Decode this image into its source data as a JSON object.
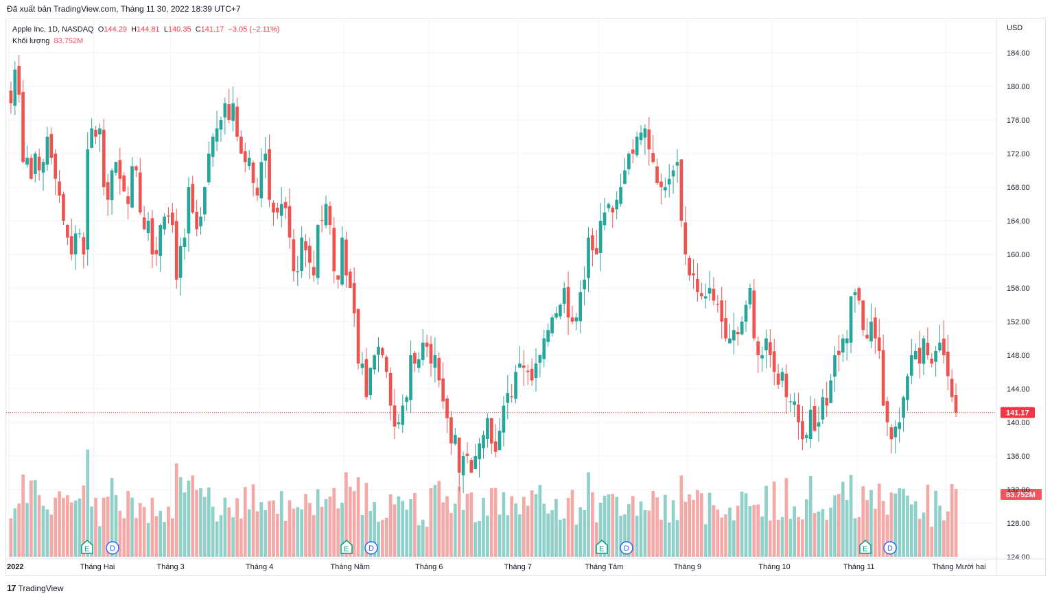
{
  "header": {
    "published": "Đã xuất bản TradingView.com, Tháng 11 30, 2022 18:39 UTC+7",
    "symbol": "Apple Inc, 1D, NASDAQ",
    "o_label": "O",
    "o_value": "144.29",
    "h_label": "H",
    "h_value": "144.81",
    "l_label": "L",
    "l_value": "140.35",
    "c_label": "C",
    "c_value": "141.17",
    "change": "−3.05 (−2.11%)",
    "volume_label": "Khối lượng",
    "volume_value": "83.752M"
  },
  "footer": {
    "brand": "TradingView",
    "logo": "17"
  },
  "colors": {
    "up": "#26a69a",
    "down": "#ef5350",
    "vol_up": "#8fd1c9",
    "vol_down": "#f4a9a7",
    "last_price_bg": "#f23645",
    "volume_badge_bg": "#f7525f",
    "grid": "#f0f3fa"
  },
  "chart_data": {
    "type": "candlestick",
    "price_axis_label": "USD",
    "y_ticks": [
      "184.00",
      "180.00",
      "176.00",
      "172.00",
      "168.00",
      "164.00",
      "160.00",
      "156.00",
      "152.00",
      "148.00",
      "144.00",
      "140.00",
      "136.00",
      "132.00",
      "128.00",
      "124.00"
    ],
    "ylim": [
      124,
      188
    ],
    "x_labels": [
      "2022",
      "Tháng Hai",
      "Tháng 3",
      "Tháng 4",
      "Tháng Năm",
      "Tháng 6",
      "Tháng 7",
      "Tháng Tám",
      "Tháng 9",
      "Tháng 10",
      "Tháng 11",
      "Tháng Mười hai"
    ],
    "last_price": "141.17",
    "last_volume": "83.752M",
    "events": [
      {
        "type": "E",
        "month_index": 1
      },
      {
        "type": "D",
        "month_index": 1
      },
      {
        "type": "E",
        "month_index": 4
      },
      {
        "type": "D",
        "month_index": 4
      },
      {
        "type": "E",
        "month_index": 7
      },
      {
        "type": "D",
        "month_index": 7
      },
      {
        "type": "E",
        "month_index": 10
      },
      {
        "type": "D",
        "month_index": 10
      }
    ],
    "close_series": [
      178,
      182,
      179,
      171,
      171.5,
      169,
      172,
      170,
      171,
      174,
      171.5,
      169,
      167,
      164,
      162,
      160,
      162.5,
      162.5,
      160,
      172.5,
      175,
      174,
      175,
      168,
      166.5,
      170,
      171,
      169,
      167.5,
      166,
      170.5,
      170,
      165,
      163,
      164,
      160,
      160,
      163.5,
      164.5,
      164.5,
      163.5,
      157,
      161,
      162,
      168,
      165,
      163,
      164.5,
      168,
      172,
      174,
      175,
      176,
      178,
      176,
      178,
      174,
      172,
      171,
      171.5,
      168.5,
      167,
      171,
      172,
      166.5,
      165,
      165,
      166,
      165.5,
      162,
      158,
      158,
      162,
      160.5,
      159,
      157.5,
      163.5,
      164,
      166,
      163.5,
      158,
      157,
      162,
      157.5,
      156,
      153,
      147,
      147,
      143,
      146.5,
      148,
      149,
      148,
      146,
      142,
      139.5,
      140,
      142,
      143,
      148,
      147,
      147.5,
      149.5,
      149,
      147,
      148,
      145,
      142.5,
      140.5,
      137.5,
      138.5,
      134,
      136,
      136,
      134,
      136,
      137.5,
      138.5,
      140.5,
      137.5,
      136.5,
      139,
      142,
      143.5,
      143,
      146,
      147,
      146.5,
      146,
      145,
      147,
      148,
      150,
      151,
      152.5,
      153,
      154,
      156,
      152.5,
      152,
      152.5,
      155.5,
      157,
      162,
      160.5,
      160,
      164,
      165,
      166,
      165,
      166.5,
      168,
      170,
      172,
      172,
      174,
      174.5,
      175,
      172.5,
      171,
      168.5,
      168,
      168,
      169,
      170,
      171,
      164,
      160,
      157.5,
      157.5,
      155.5,
      155,
      155,
      156,
      154.5,
      154,
      152,
      150,
      150,
      151,
      150.5,
      152,
      154,
      156,
      150,
      148,
      148,
      150,
      148,
      146,
      144.5,
      146,
      143,
      142.5,
      142.5,
      140,
      138,
      138.5,
      141.5,
      139,
      140,
      143,
      142,
      145,
      148,
      148,
      150,
      150,
      155,
      155.5,
      154.5,
      151,
      150,
      152,
      150,
      148.5,
      142,
      140,
      138,
      139.5,
      140,
      143,
      145.5,
      148,
      148.5,
      147,
      150,
      148,
      147,
      148.5,
      149.5,
      148,
      145.5,
      143,
      141.17
    ]
  }
}
